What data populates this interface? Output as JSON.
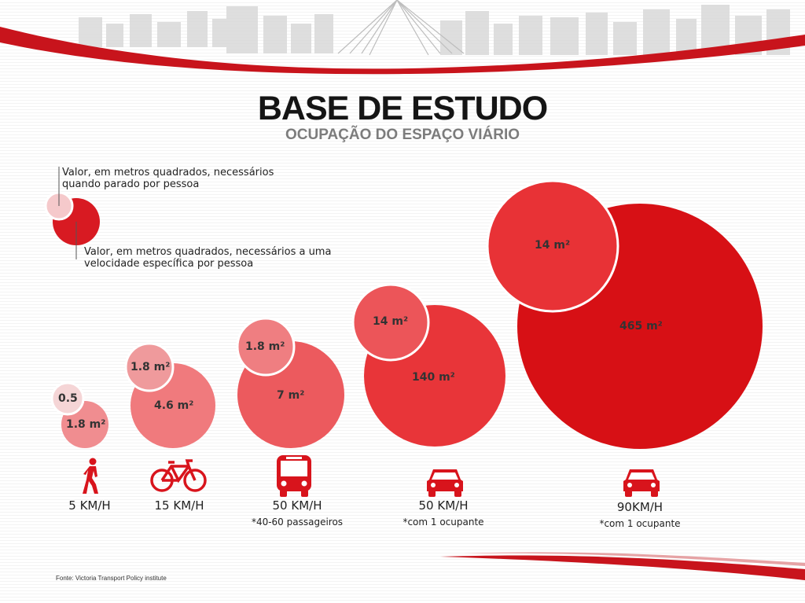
{
  "header": {
    "title": "BASE DE ESTUDO",
    "subtitle": "OCUPAÇÃO DO ESPAÇO VIÁRIO"
  },
  "legend": {
    "static_text": "Valor, em metros quadrados, necessários quando parado por pessoa",
    "moving_text": "Valor, em metros quadrados, necessários a uma velocidade específica por pessoa"
  },
  "colors": {
    "static_bubble": "#ef8d8f",
    "moving_bubble": "#d81a22",
    "banner_red": "#c8141c"
  },
  "modes": [
    {
      "icon": "pedestrian-icon",
      "speed": "5 KM/H",
      "note": "",
      "stopped_label": "0.5",
      "moving_label": "1.8 m²",
      "stopped_m2": 0.5,
      "moving_m2": 1.8
    },
    {
      "icon": "bicycle-icon",
      "speed": "15 KM/H",
      "note": "",
      "stopped_label": "1.8 m²",
      "moving_label": "4.6 m²",
      "stopped_m2": 1.8,
      "moving_m2": 4.6
    },
    {
      "icon": "bus-icon",
      "speed": "50 KM/H",
      "note": "*40-60 passageiros",
      "stopped_label": "1.8 m²",
      "moving_label": "7 m²",
      "stopped_m2": 1.8,
      "moving_m2": 7
    },
    {
      "icon": "car-icon",
      "speed": "50 KM/H",
      "note": "*com 1 ocupante",
      "stopped_label": "14 m²",
      "moving_label": "140 m²",
      "stopped_m2": 14,
      "moving_m2": 140
    },
    {
      "icon": "car-icon",
      "speed": "90KM/H",
      "note": "*com 1 ocupante",
      "stopped_label": "14 m²",
      "moving_label": "465 m²",
      "stopped_m2": 14,
      "moving_m2": 465
    }
  ],
  "source": "Fonte: Victoria Transport Policy institute"
}
